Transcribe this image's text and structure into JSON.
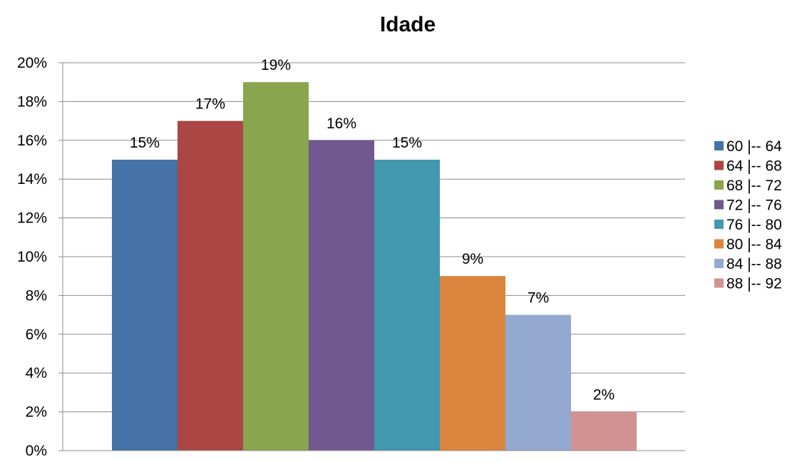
{
  "chart_data": {
    "type": "bar",
    "title": "Idade",
    "xlabel": "",
    "ylabel": "",
    "ylim": [
      0,
      20
    ],
    "yticks": [
      "0%",
      "2%",
      "4%",
      "6%",
      "8%",
      "10%",
      "12%",
      "14%",
      "16%",
      "18%",
      "20%"
    ],
    "grid": true,
    "legend_position": "right",
    "series": [
      {
        "name": "60 |-- 64",
        "value": 15,
        "label": "15%",
        "color": "#4572A7"
      },
      {
        "name": "64 |-- 68",
        "value": 17,
        "label": "17%",
        "color": "#AA4643"
      },
      {
        "name": "68 |-- 72",
        "value": 19,
        "label": "19%",
        "color": "#89A54E"
      },
      {
        "name": "72 |-- 76",
        "value": 16,
        "label": "16%",
        "color": "#71588F"
      },
      {
        "name": "76 |-- 80",
        "value": 15,
        "label": "15%",
        "color": "#4198AF"
      },
      {
        "name": "80 |-- 84",
        "value": 9,
        "label": "9%",
        "color": "#DB843D"
      },
      {
        "name": "84 |-- 88",
        "value": 7,
        "label": "7%",
        "color": "#93A9CF"
      },
      {
        "name": "88 |-- 92",
        "value": 2,
        "label": "2%",
        "color": "#D19392"
      }
    ]
  }
}
